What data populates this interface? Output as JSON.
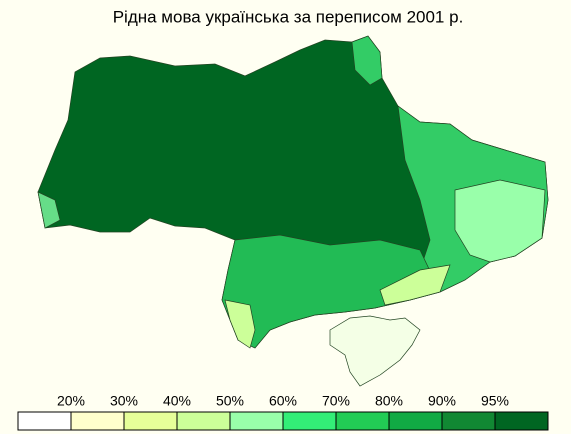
{
  "title": "Рідна мова українська за переписом 2001 р.",
  "legend": {
    "colors": [
      "#ffffff",
      "#ffffcc",
      "#e6ff99",
      "#ccff99",
      "#99ffaa",
      "#33ee77",
      "#22cc55",
      "#11aa44",
      "#118833",
      "#006622"
    ],
    "labels": [
      "20%",
      "30%",
      "40%",
      "50%",
      "60%",
      "70%",
      "80%",
      "90%",
      "95%"
    ]
  }
}
